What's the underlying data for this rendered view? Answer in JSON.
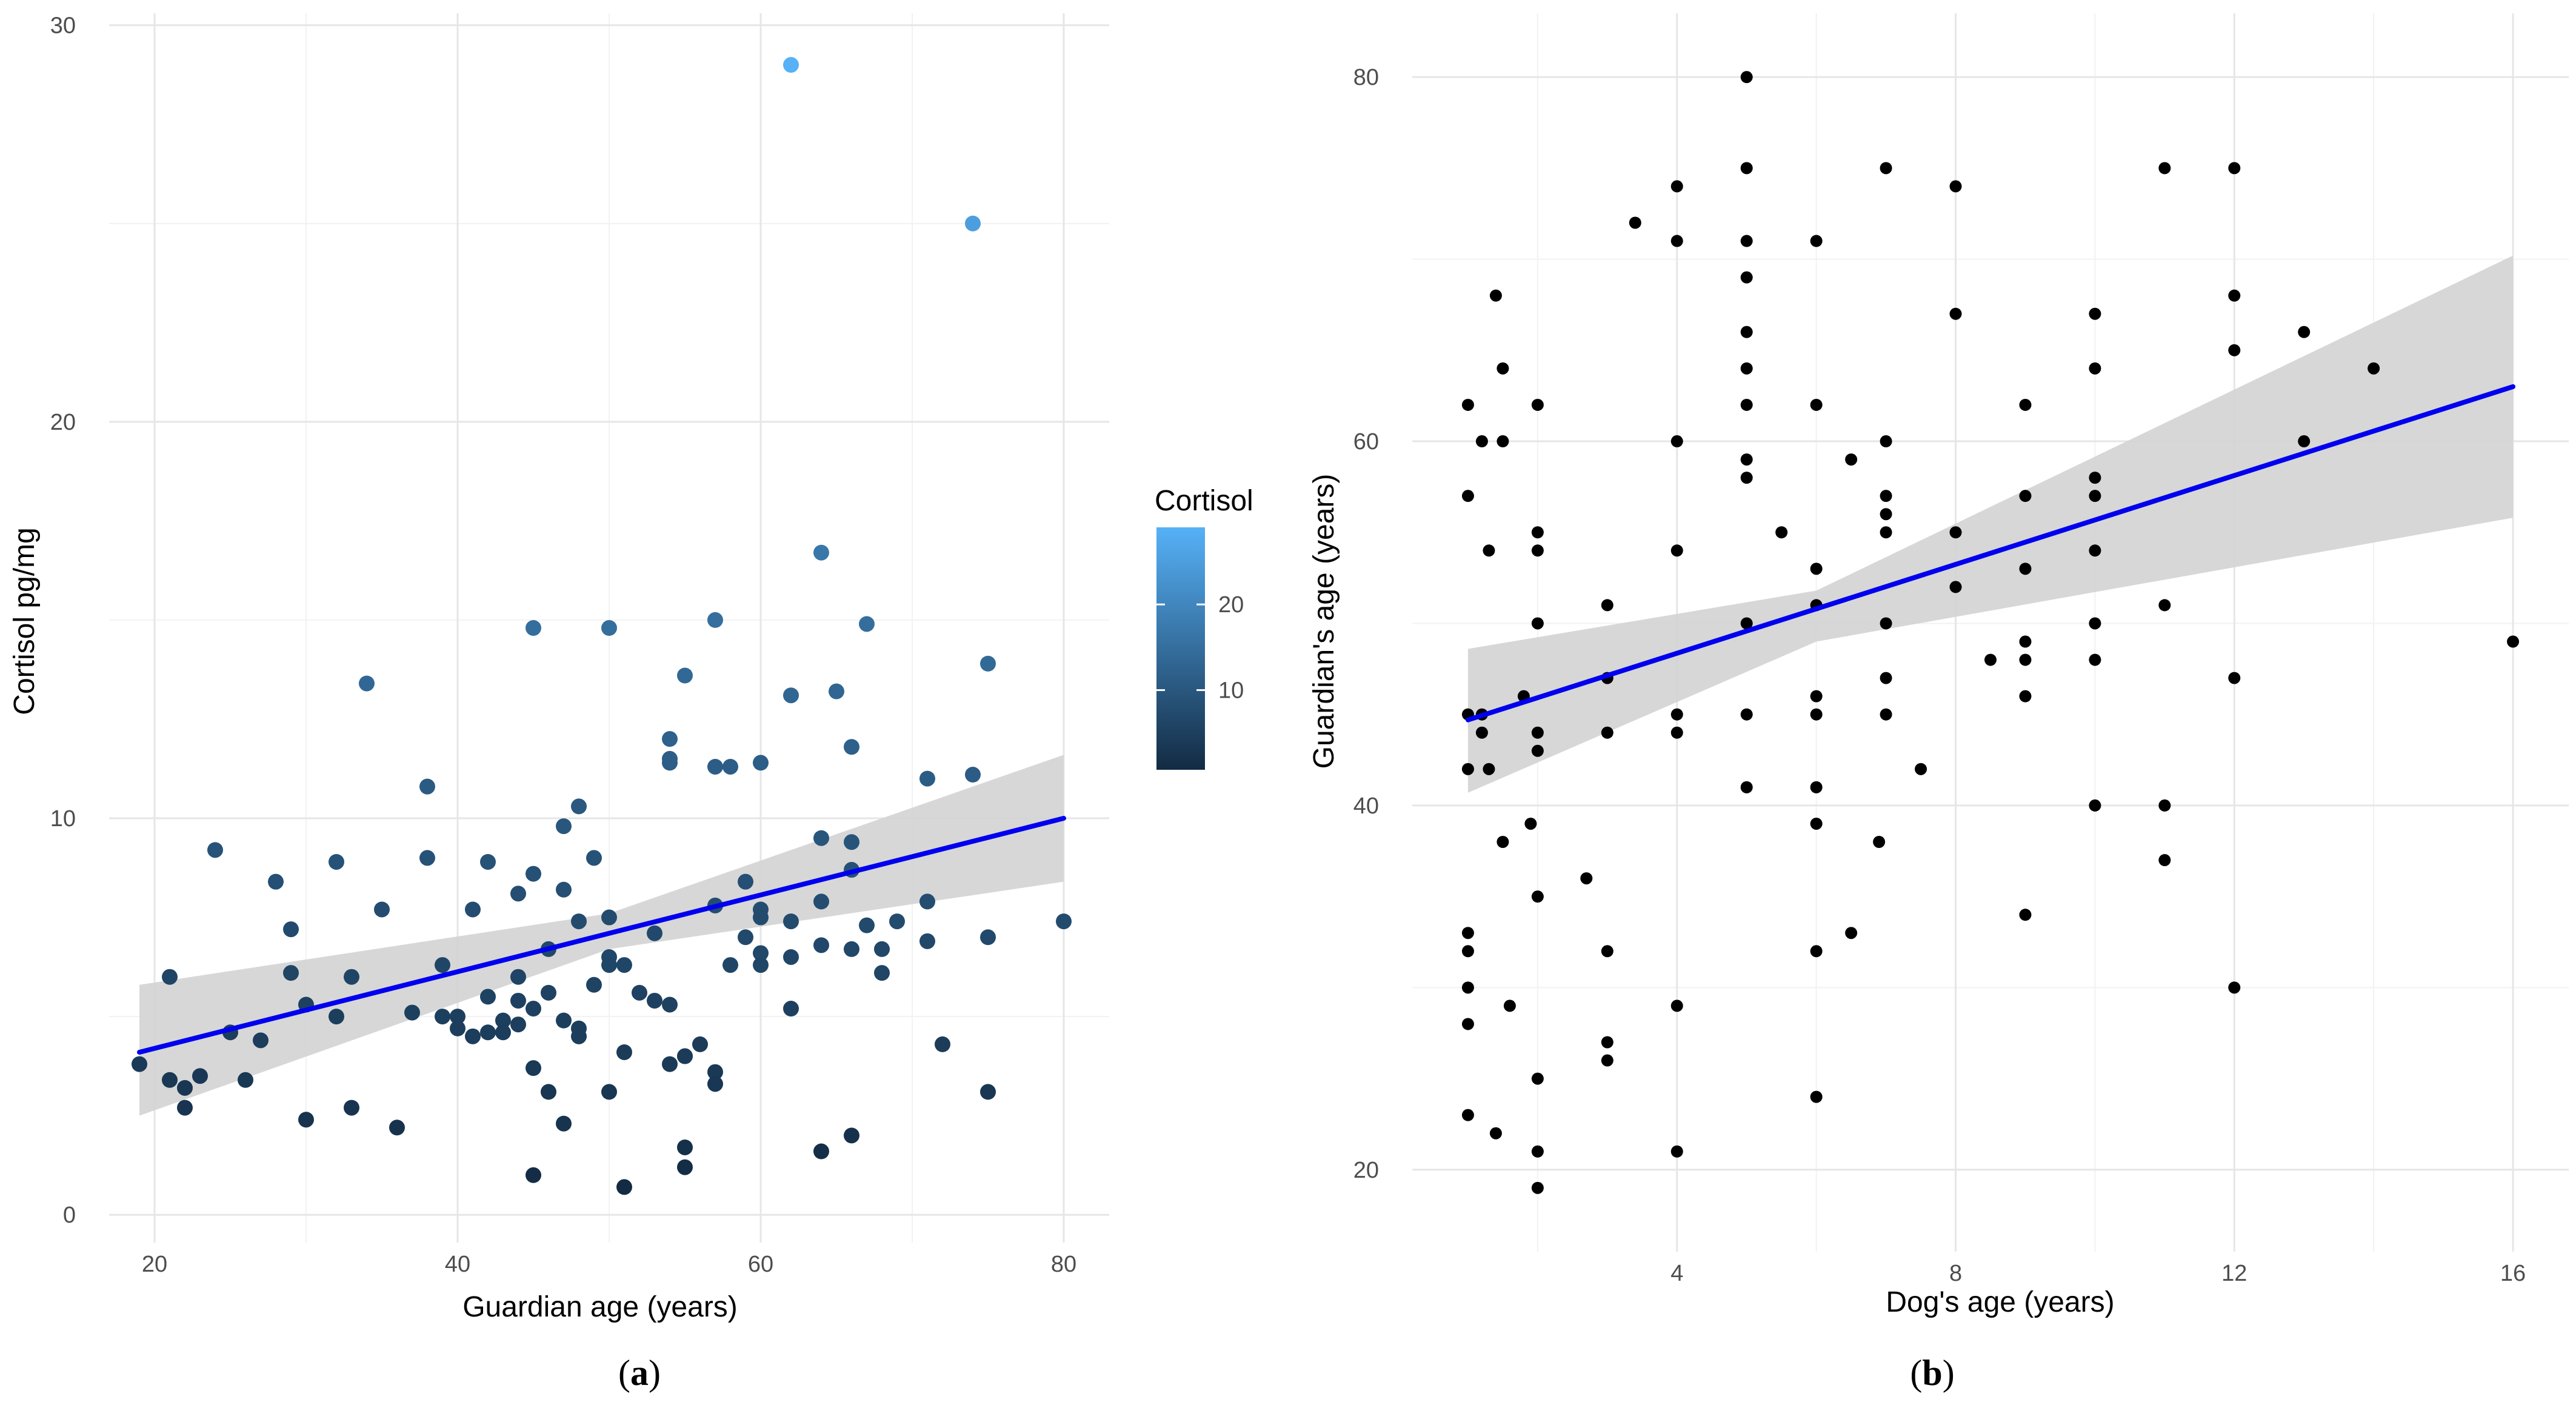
{
  "colors": {
    "trend_line": "#0000ee",
    "confidence_band": "#d3d3d3",
    "point_b": "#000000",
    "gradient_low": "#132b43",
    "gradient_high": "#56b1f7",
    "grid": "#e6e6e6"
  },
  "chart_data": [
    {
      "type": "scatter",
      "panel_label": "a",
      "xlabel": "Guardian age (years)",
      "ylabel": "Cortisol pg/mg",
      "xlim": [
        17,
        83
      ],
      "ylim": [
        -0.7,
        30.3
      ],
      "xticks": [
        20,
        40,
        60,
        80
      ],
      "yticks": [
        0,
        10,
        20,
        30
      ],
      "xtick_labels": [
        "20",
        "40",
        "60",
        "80"
      ],
      "ytick_labels": [
        "0",
        "10",
        "20",
        "30"
      ],
      "legend": {
        "title": "Cortisol",
        "position": "right",
        "ticks": [
          10,
          20
        ],
        "tick_labels": [
          "10",
          "20"
        ],
        "range": [
          0.7,
          29
        ]
      },
      "trend": {
        "x": [
          19,
          80
        ],
        "y": [
          4.1,
          10.0
        ]
      },
      "band": {
        "x": [
          19,
          50,
          80
        ],
        "lower": [
          2.5,
          6.7,
          8.4
        ],
        "upper": [
          5.8,
          7.6,
          11.6
        ]
      },
      "points": [
        [
          19,
          3.8
        ],
        [
          21,
          6.0
        ],
        [
          21,
          3.4
        ],
        [
          22,
          3.2
        ],
        [
          22,
          2.7
        ],
        [
          23,
          3.5
        ],
        [
          24,
          9.2
        ],
        [
          25,
          4.6
        ],
        [
          26,
          3.4
        ],
        [
          27,
          4.4
        ],
        [
          28,
          8.4
        ],
        [
          29,
          7.2
        ],
        [
          29,
          6.1
        ],
        [
          30,
          5.3
        ],
        [
          30,
          2.4
        ],
        [
          32,
          8.9
        ],
        [
          32,
          5.0
        ],
        [
          33,
          6.0
        ],
        [
          33,
          2.7
        ],
        [
          34,
          13.4
        ],
        [
          35,
          7.7
        ],
        [
          36,
          2.2
        ],
        [
          37,
          5.1
        ],
        [
          38,
          10.8
        ],
        [
          38,
          9.0
        ],
        [
          39,
          6.3
        ],
        [
          39,
          5.0
        ],
        [
          40,
          5.0
        ],
        [
          40,
          4.7
        ],
        [
          41,
          7.7
        ],
        [
          41,
          4.5
        ],
        [
          42,
          8.9
        ],
        [
          42,
          5.5
        ],
        [
          42,
          4.6
        ],
        [
          43,
          4.9
        ],
        [
          43,
          4.6
        ],
        [
          44,
          8.1
        ],
        [
          44,
          6.0
        ],
        [
          44,
          5.4
        ],
        [
          44,
          4.8
        ],
        [
          45,
          14.8
        ],
        [
          45,
          8.6
        ],
        [
          45,
          5.2
        ],
        [
          45,
          3.7
        ],
        [
          45,
          1.0
        ],
        [
          46,
          6.7
        ],
        [
          46,
          5.6
        ],
        [
          46,
          3.1
        ],
        [
          47,
          9.8
        ],
        [
          47,
          8.2
        ],
        [
          47,
          4.9
        ],
        [
          47,
          2.3
        ],
        [
          48,
          10.3
        ],
        [
          48,
          7.4
        ],
        [
          48,
          4.7
        ],
        [
          48,
          4.5
        ],
        [
          49,
          9.0
        ],
        [
          49,
          5.8
        ],
        [
          50,
          14.8
        ],
        [
          50,
          7.5
        ],
        [
          50,
          6.5
        ],
        [
          50,
          6.3
        ],
        [
          50,
          3.1
        ],
        [
          51,
          6.3
        ],
        [
          51,
          4.1
        ],
        [
          51,
          0.7
        ],
        [
          52,
          5.6
        ],
        [
          53,
          7.1
        ],
        [
          53,
          5.4
        ],
        [
          54,
          12.0
        ],
        [
          54,
          11.5
        ],
        [
          54,
          11.4
        ],
        [
          54,
          5.3
        ],
        [
          54,
          3.8
        ],
        [
          55,
          13.6
        ],
        [
          55,
          4.0
        ],
        [
          55,
          4.0
        ],
        [
          55,
          1.7
        ],
        [
          55,
          1.2
        ],
        [
          56,
          4.3
        ],
        [
          57,
          15.0
        ],
        [
          57,
          11.3
        ],
        [
          57,
          7.8
        ],
        [
          57,
          3.6
        ],
        [
          57,
          3.3
        ],
        [
          58,
          11.3
        ],
        [
          58,
          6.3
        ],
        [
          59,
          8.4
        ],
        [
          59,
          7.0
        ],
        [
          60,
          11.4
        ],
        [
          60,
          7.7
        ],
        [
          60,
          7.5
        ],
        [
          60,
          6.6
        ],
        [
          60,
          6.3
        ],
        [
          62,
          13.1
        ],
        [
          62,
          7.4
        ],
        [
          62,
          6.5
        ],
        [
          62,
          5.2
        ],
        [
          64,
          16.7
        ],
        [
          64,
          9.5
        ],
        [
          64,
          7.9
        ],
        [
          64,
          6.8
        ],
        [
          64,
          1.6
        ],
        [
          65,
          13.2
        ],
        [
          66,
          11.8
        ],
        [
          66,
          9.4
        ],
        [
          66,
          8.7
        ],
        [
          66,
          6.7
        ],
        [
          66,
          2.0
        ],
        [
          67,
          14.9
        ],
        [
          67,
          7.3
        ],
        [
          68,
          6.7
        ],
        [
          68,
          6.1
        ],
        [
          69,
          7.4
        ],
        [
          71,
          11.0
        ],
        [
          71,
          7.9
        ],
        [
          71,
          6.9
        ],
        [
          72,
          4.3
        ],
        [
          74,
          11.1
        ],
        [
          75,
          13.9
        ],
        [
          75,
          7.0
        ],
        [
          75,
          3.1
        ],
        [
          80,
          7.4
        ],
        [
          62,
          29.0
        ],
        [
          74,
          25.0
        ]
      ]
    },
    {
      "type": "scatter",
      "panel_label": "b",
      "xlabel": "Dog's age (years)",
      "ylabel": "Guardian's age (years)",
      "xlim": [
        0.2,
        16.8
      ],
      "ylim": [
        15.5,
        83.5
      ],
      "xticks": [
        4,
        8,
        12,
        16
      ],
      "yticks": [
        20,
        40,
        60,
        80
      ],
      "xtick_labels": [
        "4",
        "8",
        "12",
        "16"
      ],
      "ytick_labels": [
        "20",
        "40",
        "60",
        "80"
      ],
      "trend": {
        "x": [
          1,
          16
        ],
        "y": [
          44.7,
          63.0
        ]
      },
      "band": {
        "x": [
          1,
          6,
          16
        ],
        "lower": [
          40.7,
          49.0,
          55.8
        ],
        "upper": [
          48.6,
          51.8,
          70.2
        ]
      },
      "points": [
        [
          1,
          62
        ],
        [
          1,
          57
        ],
        [
          1,
          45
        ],
        [
          1,
          42
        ],
        [
          1,
          33
        ],
        [
          1,
          32
        ],
        [
          1,
          30
        ],
        [
          1,
          28
        ],
        [
          1,
          23
        ],
        [
          1.2,
          60
        ],
        [
          1.2,
          45
        ],
        [
          1.2,
          44
        ],
        [
          1.3,
          54
        ],
        [
          1.3,
          42
        ],
        [
          1.4,
          68
        ],
        [
          1.4,
          22
        ],
        [
          1.5,
          64
        ],
        [
          1.5,
          60
        ],
        [
          1.5,
          38
        ],
        [
          1.6,
          29
        ],
        [
          1.8,
          46
        ],
        [
          1.9,
          39
        ],
        [
          2,
          62
        ],
        [
          2,
          55
        ],
        [
          2,
          54
        ],
        [
          2,
          50
        ],
        [
          2,
          44
        ],
        [
          2,
          43
        ],
        [
          2,
          35
        ],
        [
          2,
          25
        ],
        [
          2,
          21
        ],
        [
          2,
          19
        ],
        [
          2.7,
          36
        ],
        [
          3,
          51
        ],
        [
          3,
          47
        ],
        [
          3,
          44
        ],
        [
          3,
          32
        ],
        [
          3,
          27
        ],
        [
          3,
          26
        ],
        [
          3.4,
          72
        ],
        [
          4,
          74
        ],
        [
          4,
          71
        ],
        [
          4,
          60
        ],
        [
          4,
          54
        ],
        [
          4,
          45
        ],
        [
          4,
          44
        ],
        [
          4,
          29
        ],
        [
          4,
          21
        ],
        [
          5,
          80
        ],
        [
          5,
          75
        ],
        [
          5,
          71
        ],
        [
          5,
          69
        ],
        [
          5,
          66
        ],
        [
          5,
          64
        ],
        [
          5,
          62
        ],
        [
          5,
          59
        ],
        [
          5,
          58
        ],
        [
          5,
          50
        ],
        [
          5,
          45
        ],
        [
          5,
          41
        ],
        [
          5.5,
          55
        ],
        [
          6,
          71
        ],
        [
          6,
          62
        ],
        [
          6,
          53
        ],
        [
          6,
          51
        ],
        [
          6,
          46
        ],
        [
          6,
          45
        ],
        [
          6,
          41
        ],
        [
          6,
          39
        ],
        [
          6,
          32
        ],
        [
          6,
          24
        ],
        [
          6.5,
          59
        ],
        [
          6.5,
          33
        ],
        [
          6.9,
          38
        ],
        [
          7,
          75
        ],
        [
          7,
          60
        ],
        [
          7,
          57
        ],
        [
          7,
          56
        ],
        [
          7,
          55
        ],
        [
          7,
          50
        ],
        [
          7,
          47
        ],
        [
          7,
          45
        ],
        [
          7.5,
          42
        ],
        [
          8,
          74
        ],
        [
          8,
          67
        ],
        [
          8,
          55
        ],
        [
          8,
          52
        ],
        [
          8.5,
          48
        ],
        [
          9,
          62
        ],
        [
          9,
          57
        ],
        [
          9,
          53
        ],
        [
          9,
          49
        ],
        [
          9,
          48
        ],
        [
          9,
          46
        ],
        [
          9,
          34
        ],
        [
          10,
          67
        ],
        [
          10,
          64
        ],
        [
          10,
          58
        ],
        [
          10,
          57
        ],
        [
          10,
          54
        ],
        [
          10,
          50
        ],
        [
          10,
          48
        ],
        [
          10,
          40
        ],
        [
          11,
          75
        ],
        [
          11,
          51
        ],
        [
          11,
          40
        ],
        [
          11,
          37
        ],
        [
          12,
          75
        ],
        [
          12,
          68
        ],
        [
          12,
          65
        ],
        [
          12,
          47
        ],
        [
          12,
          30
        ],
        [
          13,
          66
        ],
        [
          13,
          60
        ],
        [
          14,
          64
        ],
        [
          16,
          49
        ]
      ]
    }
  ]
}
